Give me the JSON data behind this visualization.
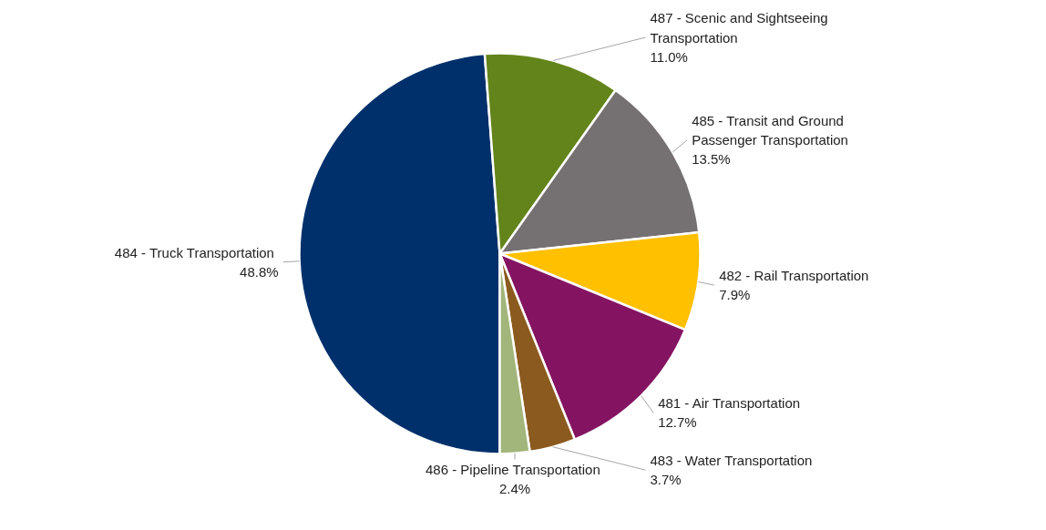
{
  "chart_data": {
    "type": "pie",
    "categories": [
      "484 -  Truck Transportation",
      "487 -  Scenic and Sightseeing Transportation",
      "485 -  Transit and Ground Passenger Transportation",
      "482 -  Rail Transportation",
      "481 -  Air Transportation",
      "483 -  Water Transportation",
      "486 -  Pipeline Transportation"
    ],
    "values": [
      48.8,
      11.0,
      13.5,
      7.9,
      12.7,
      3.7,
      2.4
    ],
    "colors": [
      "#00306b",
      "#63841a",
      "#757071",
      "#ffc000",
      "#841462",
      "#8b5a1e",
      "#a2b57a"
    ],
    "value_labels": [
      "48.8%",
      "11.0%",
      "13.5%",
      "7.9%",
      "12.7%",
      "3.7%",
      "2.4%"
    ],
    "data_labels": true
  }
}
